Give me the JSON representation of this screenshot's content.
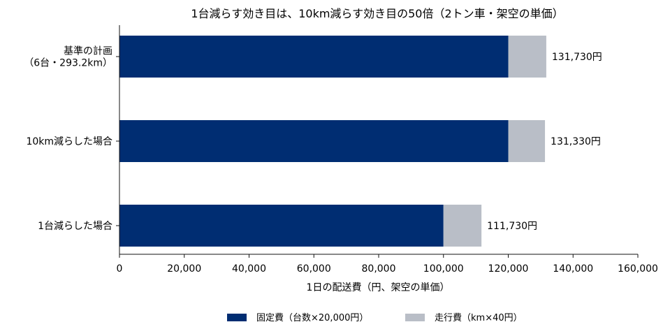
{
  "chart_data": {
    "type": "bar",
    "orientation": "horizontal",
    "stacked": true,
    "title": "1台減らす効き目は、10km減らす効き目の50倍（2トン車・架空の単価）",
    "xlabel": "1日の配送費（円、架空の単価）",
    "ylabel": "",
    "xlim": [
      0,
      160000
    ],
    "xticks": [
      0,
      20000,
      40000,
      60000,
      80000,
      100000,
      120000,
      140000,
      160000
    ],
    "xtick_labels": [
      "0",
      "20,000",
      "40,000",
      "60,000",
      "80,000",
      "100,000",
      "120,000",
      "140,000",
      "160,000"
    ],
    "categories": [
      [
        "基準の計画",
        "（6台・293.2km）"
      ],
      [
        "10km減らした場合"
      ],
      [
        "1台減らした場合"
      ]
    ],
    "series": [
      {
        "name": "固定費（台数×20,000円）",
        "color": "#002d72",
        "values": [
          120000,
          120000,
          100000
        ]
      },
      {
        "name": "走行費（km×40円）",
        "color": "#b9bec7",
        "values": [
          11730,
          11330,
          11730
        ]
      }
    ],
    "data_labels": [
      "131,730円",
      "131,330円",
      "111,730円"
    ],
    "grid": false,
    "legend": "bottom-center"
  }
}
